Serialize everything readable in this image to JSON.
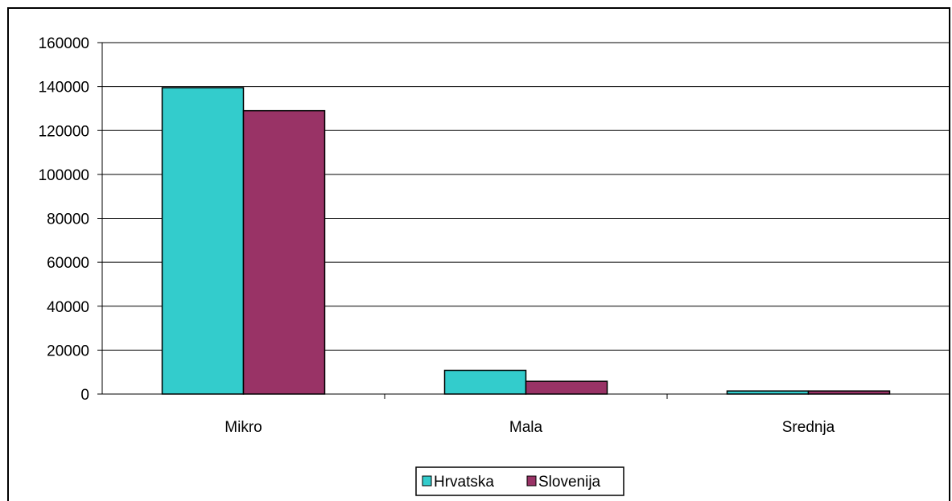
{
  "chart_data": {
    "type": "bar",
    "categories": [
      "Mikro",
      "Mala",
      "Srednja"
    ],
    "series": [
      {
        "name": "Hrvatska",
        "values": [
          139500,
          10800,
          1400
        ],
        "color": "#33CCCC"
      },
      {
        "name": "Slovenija",
        "values": [
          129000,
          5800,
          1400
        ],
        "color": "#993366"
      }
    ],
    "ylim": [
      0,
      160000
    ],
    "yticks": [
      0,
      20000,
      40000,
      60000,
      80000,
      100000,
      120000,
      140000,
      160000
    ],
    "ytick_labels": [
      "0",
      "20000",
      "40000",
      "60000",
      "80000",
      "100000",
      "120000",
      "140000",
      "160000"
    ],
    "grid": true,
    "legend_position": "bottom",
    "title": "",
    "xlabel": "",
    "ylabel": ""
  }
}
